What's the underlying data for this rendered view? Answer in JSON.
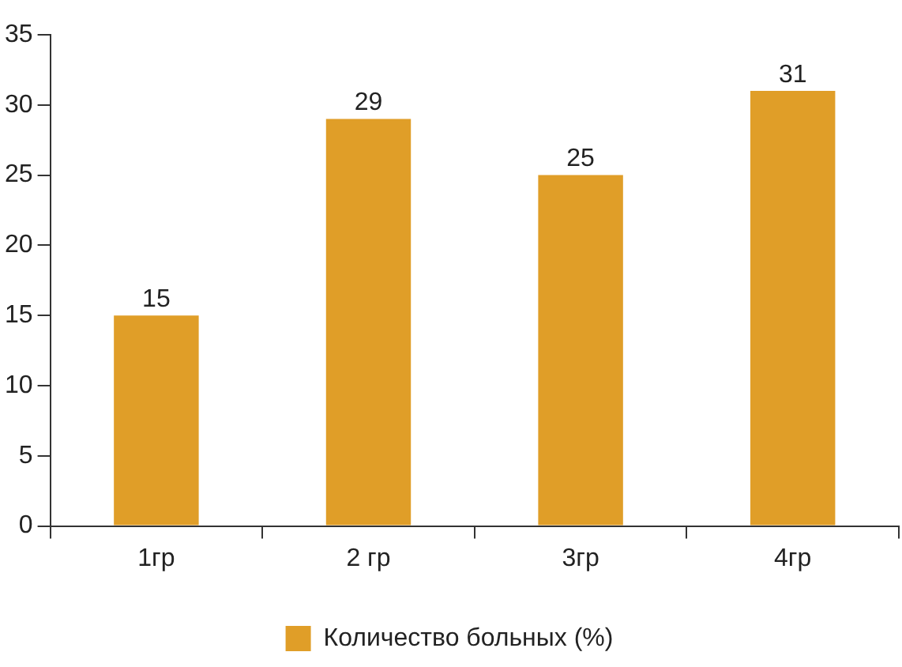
{
  "chart_data": {
    "type": "bar",
    "categories": [
      "1гр",
      "2 гр",
      "3гр",
      "4гр"
    ],
    "series": [
      {
        "name": "Количество больных (%)",
        "color": "#e09e28",
        "values": [
          15,
          29,
          25,
          31
        ]
      }
    ],
    "ylim": [
      0,
      35
    ],
    "yticks": [
      0,
      5,
      10,
      15,
      20,
      25,
      30,
      35
    ],
    "grid": false,
    "legend": "bottom",
    "data_labels": true
  }
}
